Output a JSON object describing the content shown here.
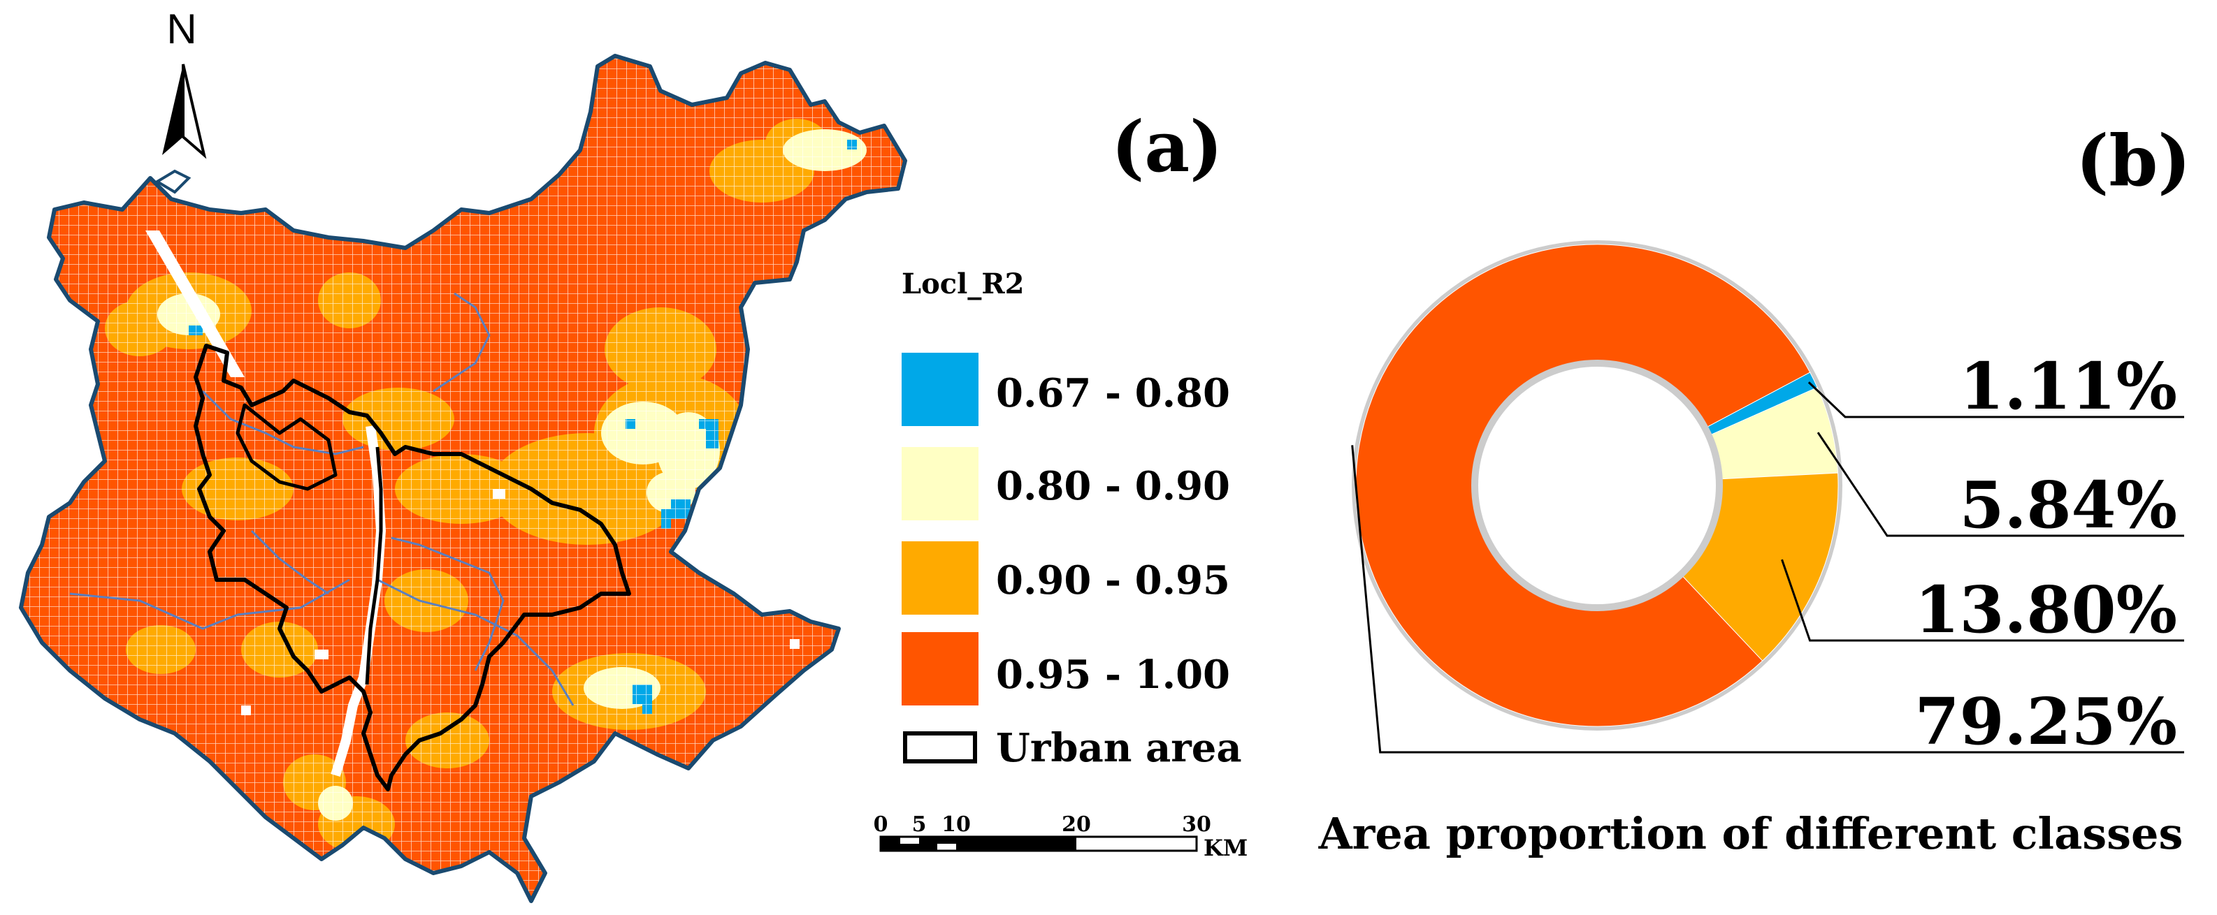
{
  "panel_a": {
    "label": "(a)",
    "north_label": "N",
    "legend": {
      "title": "Locl_R2",
      "classes": [
        {
          "label": "0.67 - 0.80",
          "color": "#00a8e8"
        },
        {
          "label": "0.80 - 0.90",
          "color": "#ffffc4"
        },
        {
          "label": "0.90 - 0.95",
          "color": "#ffaa00"
        },
        {
          "label": "0.95 - 1.00",
          "color": "#ff5500"
        }
      ],
      "urban_label": "Urban area"
    },
    "scale_bar": {
      "ticks": [
        "0",
        "5",
        "10",
        "20",
        "30"
      ],
      "unit": "KM"
    },
    "colors": {
      "boundary": "#1a4a70",
      "river": "#5a7fc0",
      "urban_outline": "#000000",
      "grid_line": "#ffffff"
    }
  },
  "panel_b": {
    "label": "(b)",
    "caption": "Area proportion of different classes"
  },
  "chart_data": {
    "type": "pie",
    "variant": "donut",
    "title": "Area proportion of different classes",
    "categories": [
      "0.67 - 0.80",
      "0.80 - 0.90",
      "0.90 - 0.95",
      "0.95 - 1.00"
    ],
    "values": [
      1.11,
      5.84,
      13.8,
      79.25
    ],
    "labels": [
      "1.11%",
      "5.84%",
      "13.80%",
      "79.25%"
    ],
    "colors": [
      "#00a8e8",
      "#ffffc4",
      "#ffaa00",
      "#ff5500"
    ]
  }
}
